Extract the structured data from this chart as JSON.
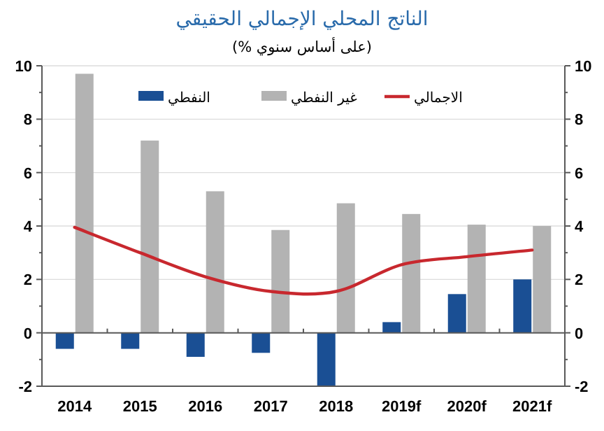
{
  "chart_data": {
    "type": "bar",
    "title": "الناتج المحلي الإجمالي الحقيقي",
    "subtitle": "(على أساس سنوي %)",
    "categories": [
      "2014",
      "2015",
      "2016",
      "2017",
      "2018",
      "2019f",
      "2020f",
      "2021f"
    ],
    "series": [
      {
        "name": "النفطي",
        "color": "#1a4f94",
        "values": [
          -0.6,
          -0.6,
          -0.9,
          -0.75,
          -2.0,
          0.4,
          1.45,
          2.0
        ]
      },
      {
        "name": "غير النفطي",
        "color": "#b3b3b3",
        "values": [
          9.7,
          7.2,
          5.3,
          3.85,
          4.85,
          4.45,
          4.05,
          4.0
        ]
      },
      {
        "name": "الاجمالي",
        "type": "line",
        "color": "#c8282e",
        "values": [
          3.95,
          3.0,
          2.1,
          1.55,
          1.55,
          2.55,
          2.85,
          3.1
        ]
      }
    ],
    "ylim": [
      -2,
      10
    ],
    "yticks": [
      -2,
      0,
      2,
      4,
      6,
      8,
      10
    ],
    "y2lim": [
      -2,
      10
    ],
    "y2ticks": [
      -2,
      0,
      2,
      4,
      6,
      8,
      10
    ],
    "grid": "y",
    "legend": "top"
  }
}
